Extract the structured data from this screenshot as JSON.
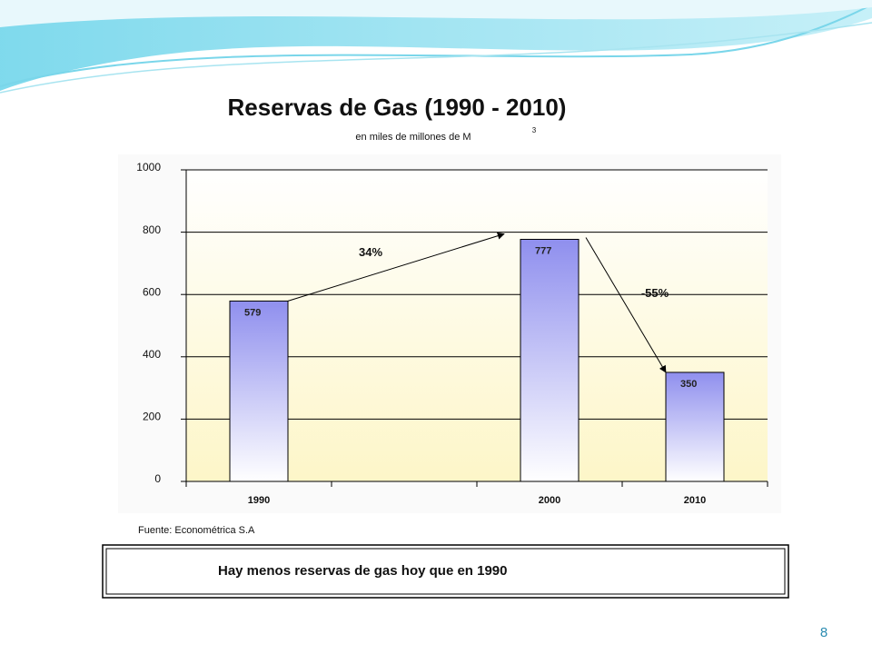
{
  "chart_data": {
    "type": "bar",
    "title": "Reservas de Gas (1990 - 2010)",
    "subtitle": "en miles de millones de M",
    "subtitle_superscript": "3",
    "categories": [
      "1990",
      null,
      "2000",
      "2010"
    ],
    "values": [
      579,
      null,
      777,
      350
    ],
    "ylim": [
      0,
      1000
    ],
    "yticks": [
      0,
      200,
      400,
      600,
      800,
      1000
    ],
    "grid": true,
    "annotations": [
      "34%",
      "-55%"
    ]
  },
  "source": "Fuente: Econométrica S.A",
  "note": "Hay menos reservas de gas hoy que en 1990",
  "page_number": "8"
}
